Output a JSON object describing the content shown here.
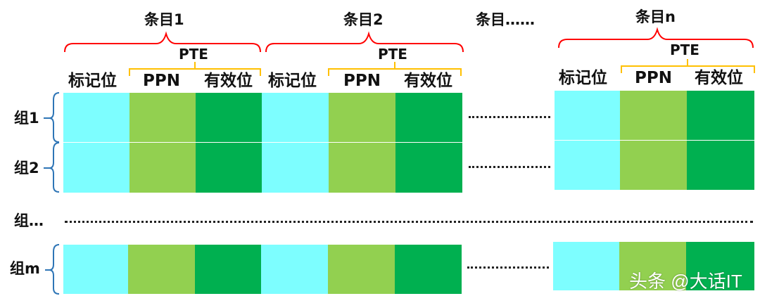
{
  "entries": {
    "entry1": "条目1",
    "entry2": "条目2",
    "entry_more": "条目……",
    "entry_n": "条目n"
  },
  "pte_label": "PTE",
  "columns": {
    "tag": "标记位",
    "ppn": "PPN",
    "valid": "有效位"
  },
  "groups": {
    "g1": "组1",
    "g2": "组2",
    "g_more": "组…",
    "g_m": "组m"
  },
  "colors": {
    "tag_cell": "#7dfeff",
    "ppn_cell": "#92d050",
    "valid_cell": "#00b050",
    "entry_brace": "#ff0000",
    "pte_brace": "#ffc000",
    "group_brace": "#2e75b6"
  },
  "watermark": "头条 @大话IT"
}
